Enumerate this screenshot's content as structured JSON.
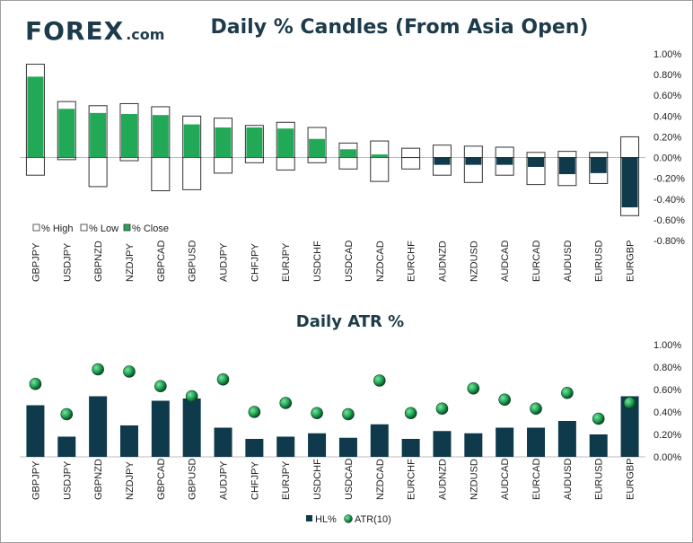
{
  "header": {
    "logo_text": "FOREX",
    "logo_suffix": ".com",
    "title": "Daily % Candles (From Asia Open)",
    "subtitle": "Daily ATR %"
  },
  "colors": {
    "brand": "#1d3b4a",
    "green": "#21a957",
    "navy": "#0e3a4c",
    "box": "#ffffff"
  },
  "chart_data": [
    {
      "type": "bar",
      "title": "Daily % Candles (From Asia Open)",
      "categories": [
        "GBPJPY",
        "USDJPY",
        "GBPNZD",
        "NZDJPY",
        "GBPCAD",
        "GBPUSD",
        "AUDJPY",
        "CHFJPY",
        "EURJPY",
        "USDCHF",
        "USDCAD",
        "NZDCAD",
        "EURCHF",
        "AUDNZD",
        "NZDUSD",
        "AUDCAD",
        "EURCAD",
        "AUDUSD",
        "EURUSD",
        "EURGBP"
      ],
      "ylim": [
        -0.8,
        1.0
      ],
      "yticks": [
        "1.00%",
        "0.80%",
        "0.60%",
        "0.40%",
        "0.20%",
        "0.00%",
        "-0.20%",
        "-0.40%",
        "-0.60%",
        "-0.80%"
      ],
      "series": [
        {
          "name": "% High",
          "values": [
            0.9,
            0.54,
            0.5,
            0.52,
            0.49,
            0.4,
            0.38,
            0.31,
            0.34,
            0.29,
            0.14,
            0.16,
            0.09,
            0.12,
            0.11,
            0.1,
            0.05,
            0.06,
            0.05,
            0.2
          ]
        },
        {
          "name": "% Low",
          "values": [
            -0.17,
            -0.02,
            -0.28,
            -0.03,
            -0.32,
            -0.31,
            -0.15,
            -0.05,
            -0.12,
            -0.05,
            -0.11,
            -0.23,
            -0.11,
            -0.17,
            -0.24,
            -0.17,
            -0.26,
            -0.27,
            -0.25,
            -0.56
          ]
        },
        {
          "name": "% Close",
          "values": [
            0.78,
            0.47,
            0.43,
            0.42,
            0.41,
            0.32,
            0.29,
            0.29,
            0.28,
            0.18,
            0.08,
            0.03,
            -0.0,
            -0.07,
            -0.07,
            -0.07,
            -0.09,
            -0.16,
            -0.15,
            -0.48
          ]
        }
      ],
      "legend_position": "bottom-left"
    },
    {
      "type": "bar",
      "title": "Daily ATR %",
      "categories": [
        "GBPJPY",
        "USDJPY",
        "GBPNZD",
        "NZDJPY",
        "GBPCAD",
        "GBPUSD",
        "AUDJPY",
        "CHFJPY",
        "EURJPY",
        "USDCHF",
        "USDCAD",
        "NZDCAD",
        "EURCHF",
        "AUDNZD",
        "NZDUSD",
        "AUDCAD",
        "EURCAD",
        "AUDUSD",
        "EURUSD",
        "EURGBP"
      ],
      "ylim": [
        0,
        1.0
      ],
      "yticks": [
        "1.00%",
        "0.80%",
        "0.60%",
        "0.40%",
        "0.20%",
        "0.00%"
      ],
      "series": [
        {
          "name": "HL%",
          "values": [
            0.46,
            0.18,
            0.54,
            0.28,
            0.5,
            0.52,
            0.26,
            0.16,
            0.18,
            0.21,
            0.17,
            0.29,
            0.16,
            0.23,
            0.21,
            0.26,
            0.26,
            0.32,
            0.2,
            0.54
          ]
        },
        {
          "name": "ATR(10)",
          "values": [
            0.65,
            0.38,
            0.78,
            0.76,
            0.63,
            0.54,
            0.69,
            0.4,
            0.48,
            0.39,
            0.38,
            0.68,
            0.39,
            0.43,
            0.61,
            0.51,
            0.43,
            0.57,
            0.34,
            0.48
          ]
        }
      ],
      "legend_position": "bottom-center"
    }
  ]
}
